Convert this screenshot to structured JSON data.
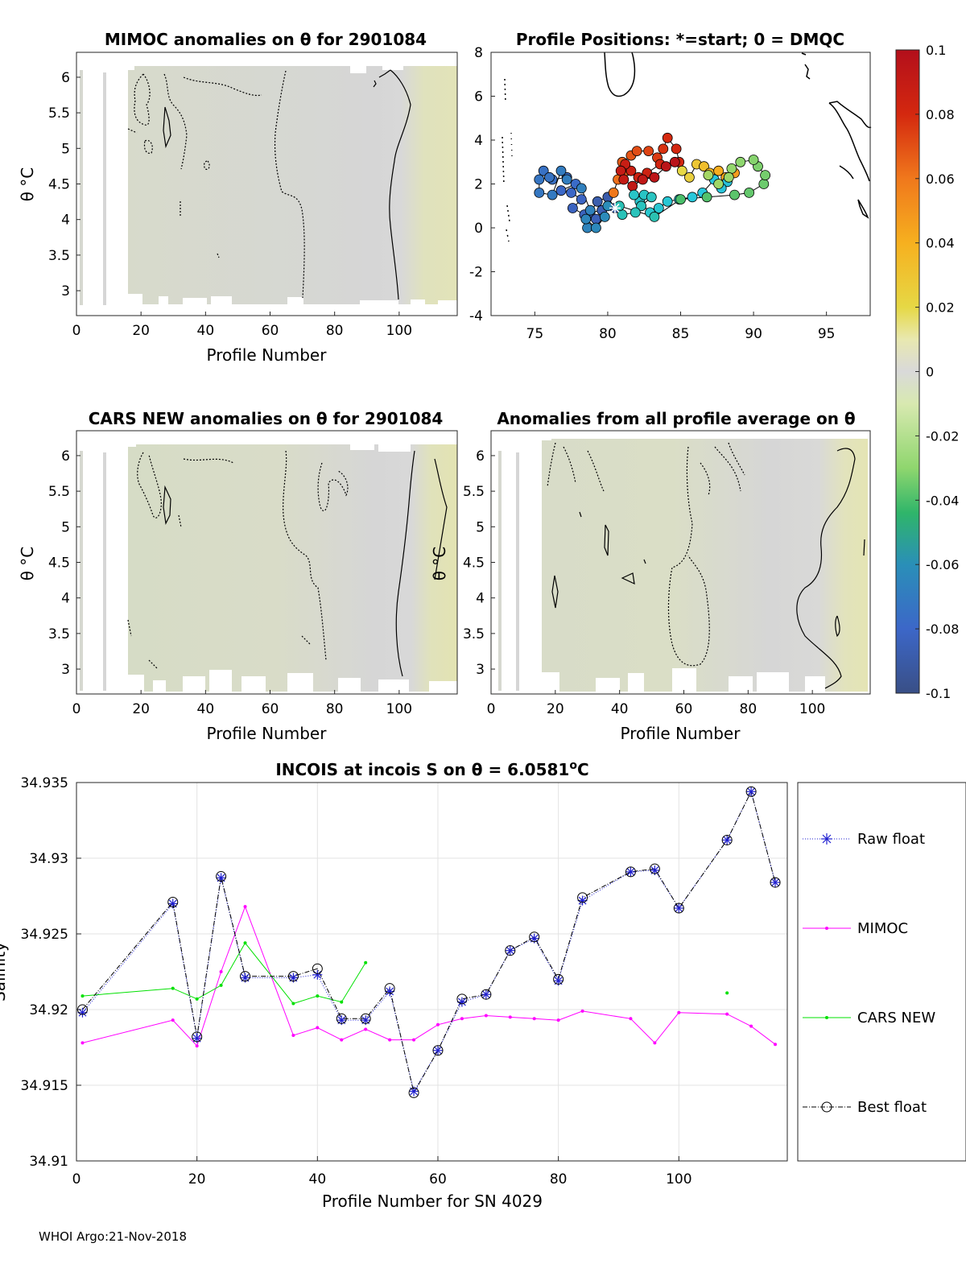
{
  "footer": "WHOI Argo:21-Nov-2018",
  "colorbar": {
    "ticks": [
      "0.1",
      "0.08",
      "0.06",
      "0.04",
      "0.02",
      "0",
      "-0.02",
      "-0.04",
      "-0.06",
      "-0.08",
      "-0.1"
    ]
  },
  "panels": {
    "mimoc": {
      "title": "MIMOC anomalies on θ  for 2901084",
      "xlabel": "Profile Number",
      "ylabel": "θ °C",
      "xticks": [
        "0",
        "20",
        "40",
        "60",
        "80",
        "100"
      ],
      "yticks": [
        "6",
        "5.5",
        "5",
        "4.5",
        "4",
        "3.5",
        "3"
      ]
    },
    "positions": {
      "title": "Profile Positions: *=start; 0 = DMQC",
      "xticks": [
        "75",
        "80",
        "85",
        "90",
        "95"
      ],
      "yticks": [
        "8",
        "6",
        "4",
        "2",
        "0",
        "-2",
        "-4"
      ]
    },
    "cars": {
      "title": "CARS NEW anomalies on θ for 2901084",
      "xlabel": "Profile Number",
      "ylabel": "θ °C",
      "xticks": [
        "0",
        "20",
        "40",
        "60",
        "80",
        "100"
      ],
      "yticks": [
        "6",
        "5.5",
        "5",
        "4.5",
        "4",
        "3.5",
        "3"
      ]
    },
    "allavg": {
      "title": "Anomalies from all profile average on θ",
      "xlabel": "Profile Number",
      "ylabel": "θ °C",
      "xticks": [
        "0",
        "20",
        "40",
        "60",
        "80",
        "100"
      ],
      "yticks": [
        "6",
        "5.5",
        "5",
        "4.5",
        "4",
        "3.5",
        "3"
      ]
    }
  },
  "legend": {
    "raw": "Raw float",
    "mimoc": "MIMOC",
    "cars": "CARS NEW",
    "best": "Best float"
  },
  "chart_data": [
    {
      "type": "heatmap",
      "title": "MIMOC anomalies on θ  for 2901084",
      "xlabel": "Profile Number",
      "ylabel": "θ °C",
      "xlim": [
        0,
        118
      ],
      "ylim": [
        2.65,
        6.35
      ],
      "clim": [
        -0.1,
        0.1
      ]
    },
    {
      "type": "scatter",
      "title": "Profile Positions: *=start; 0 = DMQC",
      "xlim": [
        72,
        98
      ],
      "ylim": [
        -4,
        8
      ],
      "track": [
        [
          80.5,
          0.9
        ],
        [
          80,
          1.4
        ],
        [
          79.3,
          1.2
        ],
        [
          78.8,
          0.7
        ],
        [
          79.6,
          0.8
        ],
        [
          79.2,
          0.4
        ],
        [
          78.4,
          0.6
        ],
        [
          77.6,
          0.9
        ],
        [
          78.2,
          1.3
        ],
        [
          77.5,
          1.6
        ],
        [
          76.8,
          1.7
        ],
        [
          77.8,
          2.0
        ],
        [
          77.2,
          2.3
        ],
        [
          76.2,
          2.2
        ],
        [
          75.6,
          2.6
        ],
        [
          76.0,
          2.3
        ],
        [
          75.3,
          2.2
        ],
        [
          75.3,
          1.6
        ],
        [
          76.2,
          1.5
        ],
        [
          76.8,
          2.6
        ],
        [
          77.2,
          2.2
        ],
        [
          78.2,
          1.8
        ],
        [
          78.8,
          0.8
        ],
        [
          78.6,
          0.0
        ],
        [
          78.5,
          0.4
        ],
        [
          79.2,
          0.0
        ],
        [
          79.8,
          0.5
        ],
        [
          80.0,
          1.0
        ],
        [
          80.4,
          1.6
        ],
        [
          80.7,
          2.2
        ],
        [
          81.3,
          2.6
        ],
        [
          81.0,
          3.0
        ],
        [
          81.6,
          3.3
        ],
        [
          82.0,
          3.5
        ],
        [
          82.8,
          3.5
        ],
        [
          83.4,
          3.2
        ],
        [
          83.8,
          3.6
        ],
        [
          84.1,
          4.1
        ],
        [
          84.7,
          3.6
        ],
        [
          84.9,
          3.0
        ],
        [
          83.6,
          2.9
        ],
        [
          82.7,
          2.5
        ],
        [
          82.1,
          2.3
        ],
        [
          81.6,
          2.6
        ],
        [
          81.2,
          2.9
        ],
        [
          80.9,
          2.6
        ],
        [
          81.1,
          2.2
        ],
        [
          81.7,
          1.9
        ],
        [
          82.4,
          2.2
        ],
        [
          83.2,
          2.3
        ],
        [
          84.0,
          2.8
        ],
        [
          84.6,
          3.0
        ],
        [
          85.1,
          2.6
        ],
        [
          85.6,
          2.3
        ],
        [
          86.1,
          2.9
        ],
        [
          86.6,
          2.8
        ],
        [
          87.0,
          2.5
        ],
        [
          87.6,
          2.6
        ],
        [
          88.1,
          2.3
        ],
        [
          88.7,
          2.5
        ],
        [
          88.2,
          2.1
        ],
        [
          87.8,
          1.8
        ],
        [
          87.3,
          2.2
        ],
        [
          86.5,
          1.6
        ],
        [
          85.8,
          1.4
        ],
        [
          84.9,
          1.3
        ],
        [
          84.1,
          1.2
        ],
        [
          83.5,
          0.9
        ],
        [
          82.9,
          0.7
        ],
        [
          82.2,
          1.2
        ],
        [
          81.8,
          1.5
        ],
        [
          82.5,
          1.5
        ],
        [
          83.0,
          1.4
        ],
        [
          82.3,
          1.0
        ],
        [
          81.9,
          0.7
        ],
        [
          81.0,
          0.6
        ],
        [
          80.8,
          1.0
        ],
        [
          83.2,
          0.5
        ],
        [
          85.0,
          1.3
        ],
        [
          86.8,
          1.4
        ],
        [
          88.7,
          1.5
        ],
        [
          89.7,
          1.6
        ],
        [
          90.7,
          2.0
        ],
        [
          90.8,
          2.4
        ],
        [
          90.3,
          2.8
        ],
        [
          90.0,
          3.1
        ],
        [
          89.1,
          3.0
        ],
        [
          88.5,
          2.7
        ],
        [
          88.3,
          2.3
        ],
        [
          87.6,
          2.0
        ],
        [
          86.9,
          2.4
        ]
      ]
    },
    {
      "type": "heatmap",
      "title": "CARS NEW anomalies on θ for 2901084",
      "xlabel": "Profile Number",
      "ylabel": "θ °C",
      "xlim": [
        0,
        118
      ],
      "ylim": [
        2.65,
        6.35
      ],
      "clim": [
        -0.1,
        0.1
      ]
    },
    {
      "type": "heatmap",
      "title": "Anomalies from all profile average on θ",
      "xlabel": "Profile Number",
      "ylabel": "θ °C",
      "xlim": [
        0,
        118
      ],
      "ylim": [
        2.65,
        6.35
      ],
      "clim": [
        -0.1,
        0.1
      ]
    },
    {
      "type": "line",
      "title": "INCOIS at incois S on θ = 6.0581°C",
      "xlabel": "Profile Number for SN 4029",
      "ylabel": "Salinity",
      "xlim": [
        0,
        118
      ],
      "ylim": [
        34.91,
        34.935
      ],
      "xticks": [
        "0",
        "20",
        "40",
        "60",
        "80",
        "100"
      ],
      "yticks": [
        "34.935",
        "34.93",
        "34.925",
        "34.92",
        "34.915",
        "34.91"
      ],
      "series": [
        {
          "name": "Raw float",
          "x": [
            1,
            16,
            20,
            24,
            28,
            36,
            40,
            44,
            48,
            52,
            56,
            60,
            64,
            68,
            72,
            76,
            80,
            84,
            92,
            96,
            100,
            108,
            112,
            116
          ],
          "values": [
            34.9198,
            34.927,
            34.9181,
            34.9287,
            34.9221,
            34.9221,
            34.9223,
            34.9193,
            34.9193,
            34.9212,
            34.9146,
            34.9173,
            34.9205,
            34.921,
            34.9239,
            34.9247,
            34.9219,
            34.9272,
            34.9291,
            34.9292,
            34.9267,
            34.9312,
            34.9344,
            34.9284
          ]
        },
        {
          "name": "MIMOC",
          "x": [
            1,
            16,
            20,
            24,
            28,
            36,
            40,
            44,
            48,
            52,
            56,
            60,
            64,
            68,
            72,
            76,
            80,
            84,
            92,
            96,
            100,
            108,
            112,
            116
          ],
          "values": [
            34.9178,
            34.9193,
            34.9176,
            34.9225,
            34.9268,
            34.9183,
            34.9188,
            34.918,
            34.9187,
            34.918,
            34.918,
            34.919,
            34.9194,
            34.9196,
            34.9195,
            34.9194,
            34.9193,
            34.9199,
            34.9194,
            34.9178,
            34.9198,
            34.9197,
            34.9189,
            34.9177
          ]
        },
        {
          "name": "CARS NEW",
          "x": [
            1,
            16,
            20,
            24,
            28,
            36,
            40,
            44,
            48
          ],
          "values": [
            34.9209,
            34.9214,
            34.9207,
            34.9216,
            34.9244,
            34.9204,
            34.9209,
            34.9205,
            34.9231
          ],
          "extra_points": [
            [
              108,
              34.9211
            ]
          ]
        },
        {
          "name": "Best float",
          "x": [
            1,
            16,
            20,
            24,
            28,
            36,
            40,
            44,
            48,
            52,
            56,
            60,
            64,
            68,
            72,
            76,
            80,
            84,
            92,
            96,
            100,
            108,
            112,
            116
          ],
          "values": [
            34.92,
            34.9271,
            34.9182,
            34.9288,
            34.9222,
            34.9222,
            34.9227,
            34.9194,
            34.9194,
            34.9214,
            34.9145,
            34.9173,
            34.9207,
            34.921,
            34.9239,
            34.9248,
            34.922,
            34.9274,
            34.9291,
            34.9293,
            34.9267,
            34.9312,
            34.9344,
            34.9284
          ]
        }
      ]
    }
  ]
}
